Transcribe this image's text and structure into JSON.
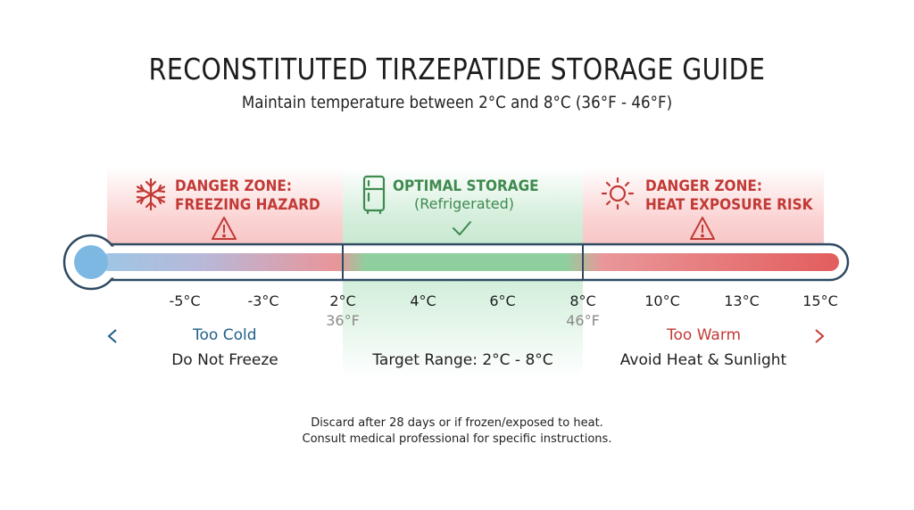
{
  "title": "RECONSTITUTED TIRZEPATIDE STORAGE GUIDE",
  "subtitle": "Maintain temperature between 2°C and 8°C (36°F - 46°F)",
  "zones": {
    "cold": {
      "line1": "DANGER ZONE:",
      "line2": "FREEZING HAZARD",
      "icon": "snowflake-icon",
      "color": "#c23a36"
    },
    "optimal": {
      "line1": "OPTIMAL STORAGE",
      "line2": "(Refrigerated)",
      "icon": "refrigerator-icon",
      "color": "#3f8a4f"
    },
    "heat": {
      "line1": "DANGER ZONE:",
      "line2": "HEAT EXPOSURE RISK",
      "icon": "sun-icon",
      "color": "#c23a36"
    }
  },
  "scale": {
    "celsius_ticks": [
      "-5°C",
      "-3°C",
      "2°C",
      "4°C",
      "6°C",
      "8°C",
      "10°C",
      "13°C",
      "15°C"
    ],
    "fahrenheit_labels": {
      "low": "36°F",
      "high": "46°F"
    },
    "range_low": "2°C",
    "range_high": "8°C"
  },
  "directions": {
    "cold_label": "Too Cold",
    "warm_label": "Too Warm"
  },
  "notes": {
    "cold": "Do Not Freeze",
    "optimal": "Target Range: 2°C - 8°C",
    "heat": "Avoid Heat & Sunlight"
  },
  "footer": {
    "line1": "Discard after 28 days or if frozen/exposed to heat.",
    "line2": "Consult medical professional for specific instructions."
  },
  "colors": {
    "danger": "#c23a36",
    "safe": "#3f8a4f",
    "cold_blue": "#1f5f86",
    "bulb": "#7db8e3"
  }
}
